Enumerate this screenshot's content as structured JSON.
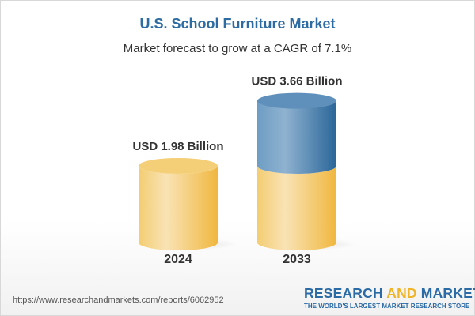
{
  "title": "U.S. School Furniture Market",
  "subtitle": "Market forecast to grow at a CAGR of 7.1%",
  "chart_data": {
    "type": "bar",
    "style": "3d-cylinder",
    "categories": [
      "2024",
      "2033"
    ],
    "values": [
      1.98,
      3.66
    ],
    "data_labels": [
      "USD 1.98 Billion",
      "USD 3.66 Billion"
    ],
    "unit": "USD Billion",
    "colors": {
      "base": "#f2c55a",
      "growth": "#4a82b3"
    }
  },
  "footer": {
    "url": "https://www.researchandmarkets.com/reports/6062952",
    "logo_part1": "RESEARCH ",
    "logo_part2": "AND",
    "logo_part3": " MARKETS",
    "tagline": "THE WORLD'S LARGEST MARKET RESEARCH STORE"
  }
}
